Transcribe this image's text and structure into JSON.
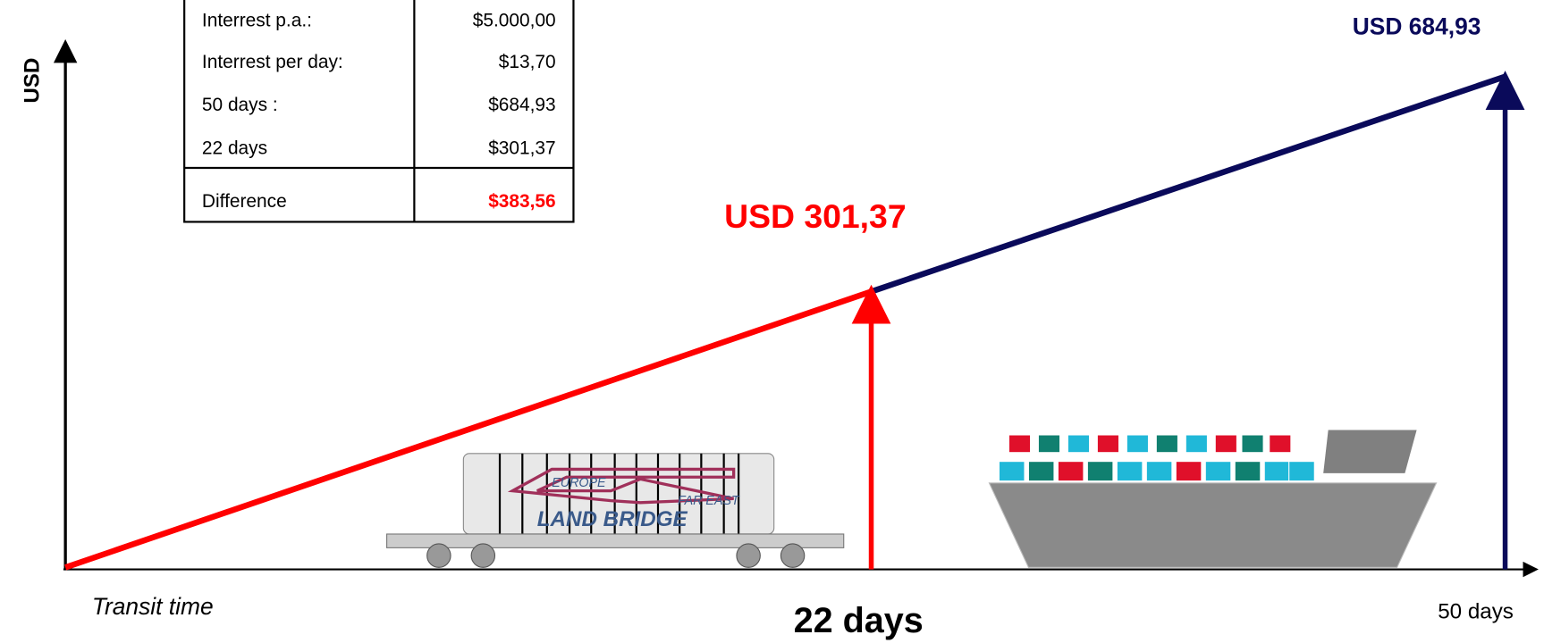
{
  "table": {
    "rows": [
      [
        "Interrest p.a.:",
        "$5.000,00"
      ],
      [
        "Interrest per day:",
        "$13,70"
      ],
      [
        "50 days :",
        "$684,93"
      ],
      [
        "22 days",
        "$301,37"
      ],
      [
        "Difference",
        "$383,56"
      ]
    ]
  },
  "axis": {
    "y_label": "USD",
    "x_label": "Transit time"
  },
  "labels": {
    "short_value": "USD 301,37",
    "long_value": "USD 684,93",
    "short_days": "22 days",
    "long_days": "50 days"
  },
  "train_logo": [
    "EUROPE",
    "FAR EAST",
    "LAND BRIDGE"
  ]
}
